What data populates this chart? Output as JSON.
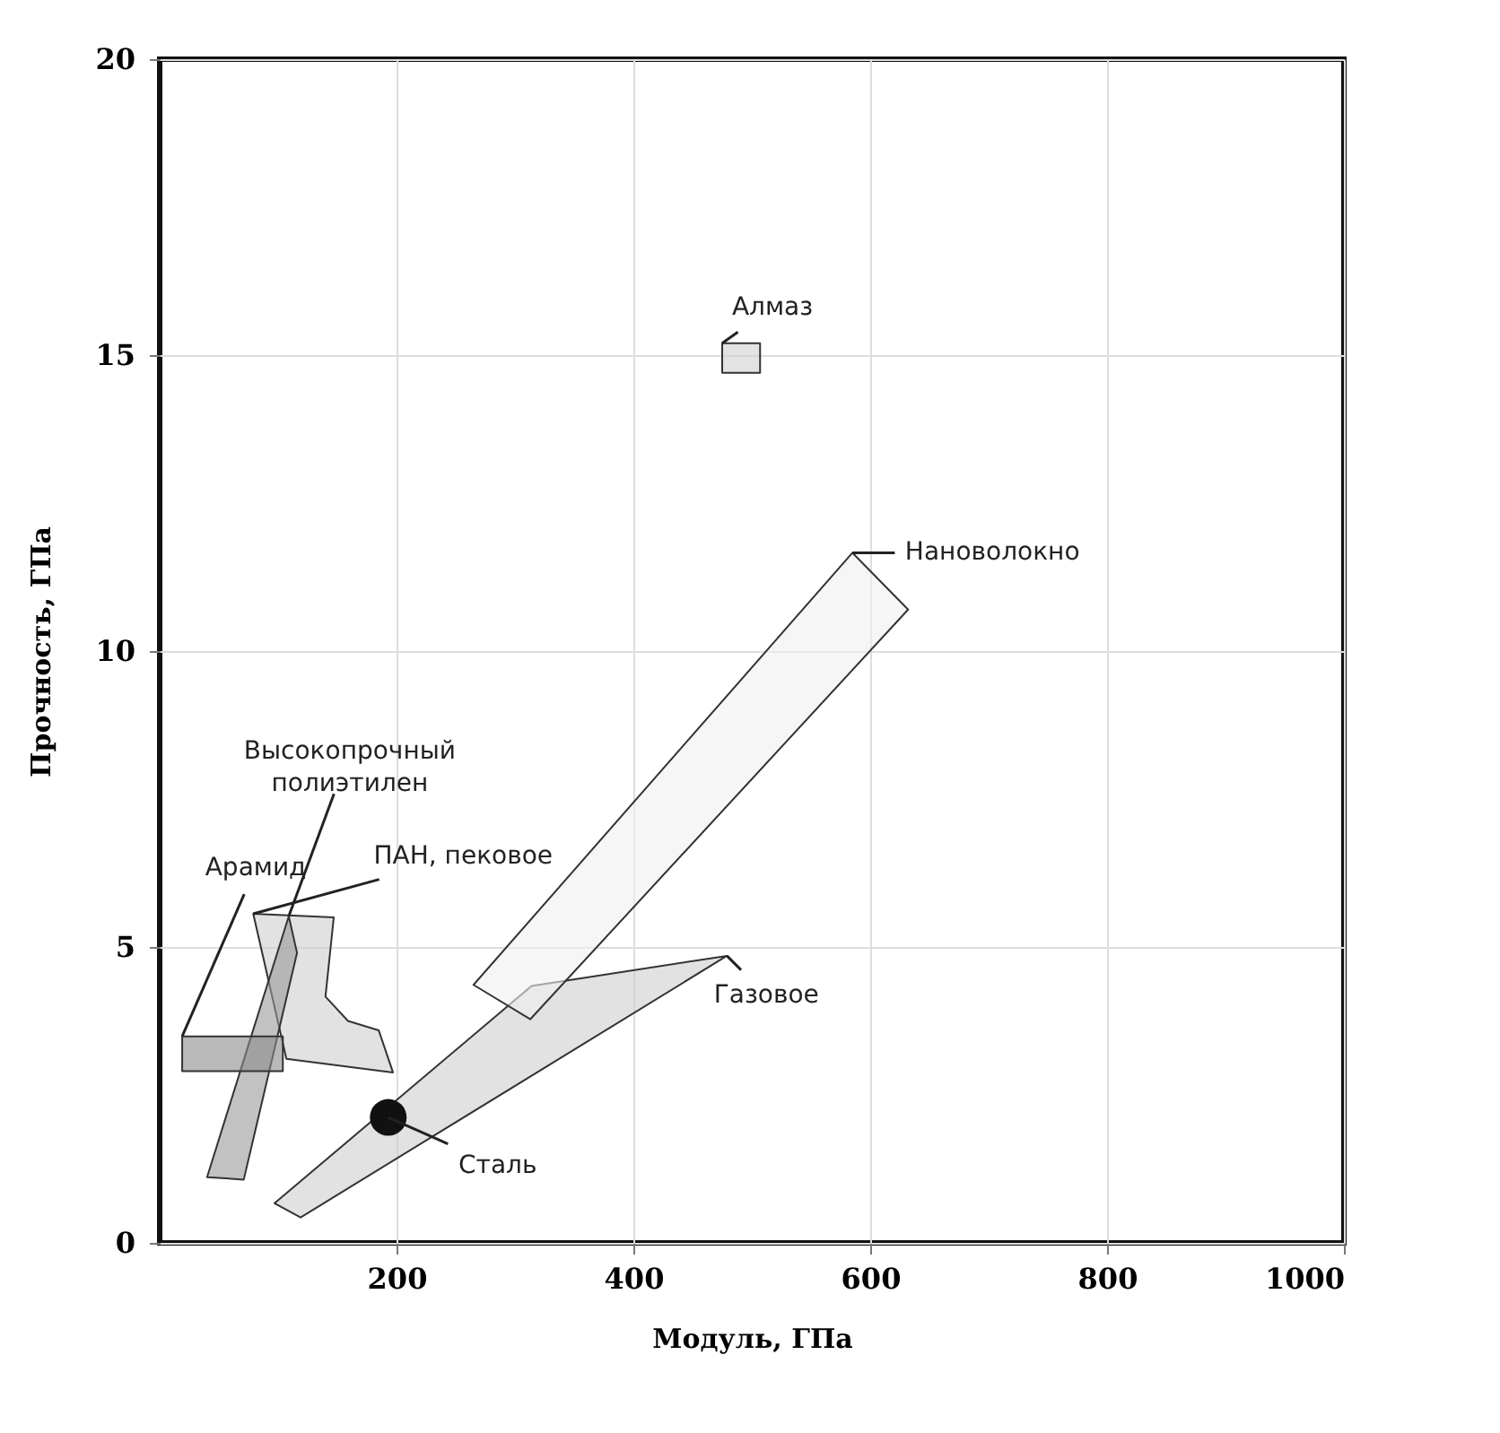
{
  "chart_data": {
    "type": "area",
    "xlabel": "Модуль, ГПа",
    "ylabel": "Прочность, ГПа",
    "xlim": [
      0,
      1000
    ],
    "ylim": [
      0,
      20
    ],
    "xticks": [
      200,
      400,
      600,
      800,
      1000
    ],
    "yticks": [
      0,
      5,
      10,
      15,
      20
    ],
    "grid": true,
    "series": [
      {
        "name": "Газовое",
        "color": "#cfcfcf",
        "x": [
          97,
          314,
          479,
          119
        ],
        "values": [
          0.67,
          4.34,
          4.85,
          0.43
        ]
      },
      {
        "name": "Нановолокно",
        "color": "#f0f0f0",
        "x": [
          265,
          585,
          632,
          313
        ],
        "values": [
          4.36,
          11.66,
          10.7,
          3.78
        ]
      },
      {
        "name": "ПАН, пековое",
        "color": "#cfcfcf",
        "x": [
          79,
          147,
          140,
          159,
          185,
          197,
          107
        ],
        "values": [
          5.56,
          5.5,
          4.16,
          3.75,
          3.59,
          2.88,
          3.11
        ]
      },
      {
        "name": "Высокопрочный\nполиэтилен",
        "color": "#9a9a9a",
        "x": [
          40,
          71,
          116,
          109
        ],
        "values": [
          1.11,
          1.07,
          4.9,
          5.52
        ]
      },
      {
        "name": "Арамид",
        "color": "#8a8a8a",
        "x": [
          19,
          104,
          104,
          19
        ],
        "values": [
          3.49,
          3.49,
          2.9,
          2.9
        ]
      },
      {
        "name": "Алмаз",
        "color": "#d0d0d0",
        "x": [
          475,
          507,
          507,
          475
        ],
        "values": [
          15.2,
          15.2,
          14.7,
          14.7
        ]
      },
      {
        "name": "Сталь",
        "type": "scatter",
        "color": "#111111",
        "marker": "circle",
        "x": [
          193
        ],
        "values": [
          2.12
        ]
      }
    ]
  }
}
